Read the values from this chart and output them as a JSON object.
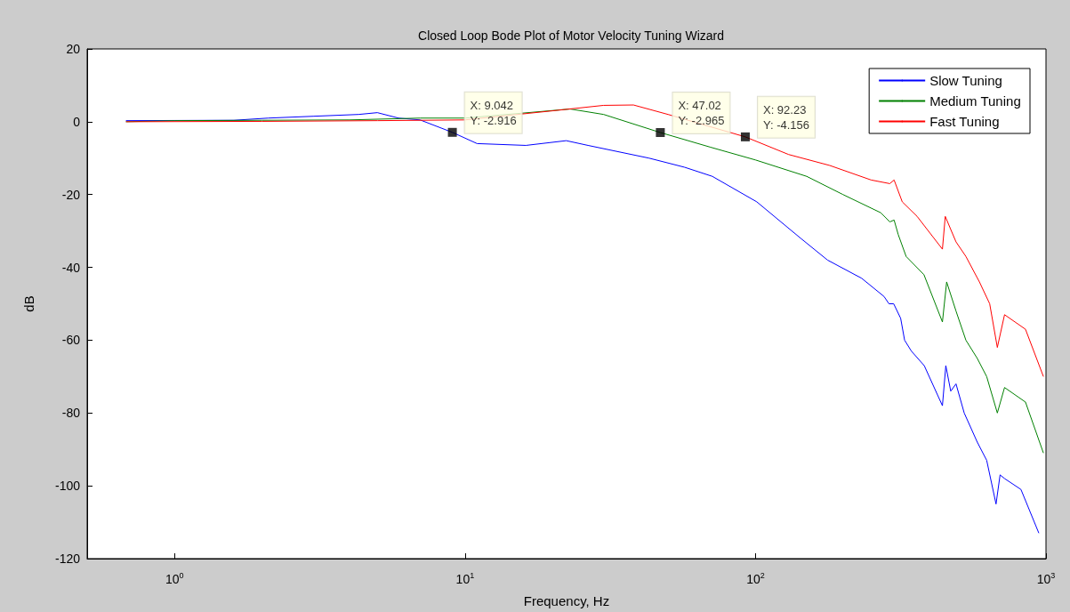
{
  "chart_data": {
    "type": "line",
    "title": "Closed Loop Bode Plot of Motor Velocity Tuning Wizard",
    "xlabel": "Frequency, Hz",
    "ylabel": "dB",
    "log": "x",
    "grid": false,
    "legend": "top right",
    "marker": "none",
    "line_style": "solid",
    "xlim": [
      0.5,
      1000
    ],
    "xticks": [
      {
        "value": 1,
        "label": "10$^{0}$"
      },
      {
        "value": 10,
        "label": "10$^{1}$"
      },
      {
        "value": 100,
        "label": "10$^{2}$"
      },
      {
        "value": 1000,
        "label": "10$^{3}$"
      }
    ],
    "ylim": [
      -120,
      20
    ],
    "yticks": [
      -120,
      -100,
      -80,
      -60,
      -40,
      -20,
      0,
      20
    ],
    "series": [
      {
        "name": "Slow Tuning",
        "color": "#0000ff",
        "x": [
          0.68,
          1.6,
          2.1,
          3,
          4.3,
          4.99,
          5.9,
          7,
          9.042,
          11,
          16.2,
          22.3,
          26.5,
          43,
          57,
          71,
          101,
          143,
          177,
          232,
          277,
          288,
          299,
          316,
          326,
          344,
          381,
          440,
          452,
          470,
          490,
          523,
          580,
          625,
          673,
          695,
          720,
          820,
          945
        ],
        "values": [
          0.3,
          0.4,
          1,
          1.5,
          2,
          2.5,
          1,
          0.5,
          -2.916,
          -6,
          -6.5,
          -5.2,
          -6.5,
          -10,
          -12.5,
          -15,
          -22,
          -32,
          -38,
          -43,
          -48,
          -50,
          -50,
          -54,
          -60,
          -63,
          -67,
          -78,
          -67,
          -74,
          -72,
          -80,
          -88,
          -93,
          -105,
          -97,
          -98,
          -101,
          -113
        ]
      },
      {
        "name": "Medium Tuning",
        "color": "#008000",
        "x": [
          0.68,
          1,
          2,
          4,
          7,
          10,
          23,
          30,
          47.02,
          70,
          100,
          150,
          200,
          270,
          290,
          300,
          310,
          330,
          380,
          440,
          455,
          490,
          530,
          580,
          625,
          680,
          720,
          850,
          980
        ],
        "values": [
          0,
          0.3,
          0.4,
          0.5,
          1,
          1,
          3.5,
          2,
          -2.965,
          -7,
          -10.5,
          -15,
          -20,
          -25,
          -27.5,
          -27,
          -31,
          -37,
          -42,
          -55,
          -44,
          -52,
          -60,
          -65,
          -70,
          -80,
          -73,
          -77,
          -91
        ]
      },
      {
        "name": "Fast Tuning",
        "color": "#ff0000",
        "x": [
          0.68,
          2,
          5,
          10,
          20,
          30,
          38,
          50,
          92.23,
          130,
          180,
          250,
          290,
          300,
          320,
          360,
          440,
          450,
          490,
          530,
          590,
          640,
          680,
          720,
          850,
          980
        ],
        "values": [
          0,
          0.1,
          0.3,
          0.5,
          3,
          4.5,
          4.6,
          2,
          -4.156,
          -9,
          -12,
          -16,
          -17,
          -16,
          -22,
          -26,
          -35,
          -26,
          -33,
          -37,
          -44,
          -50,
          -62,
          -53,
          -57,
          -70
        ]
      }
    ],
    "annotations": [
      {
        "text": "X: 9.042\nY: -2.916",
        "x": 9.042,
        "y": -2.916
      },
      {
        "text": "X: 47.02\nY: -2.965",
        "x": 47.02,
        "y": -2.965
      },
      {
        "text": "X: 92.23\nY: -4.156",
        "x": 92.23,
        "y": -4.156
      }
    ]
  }
}
